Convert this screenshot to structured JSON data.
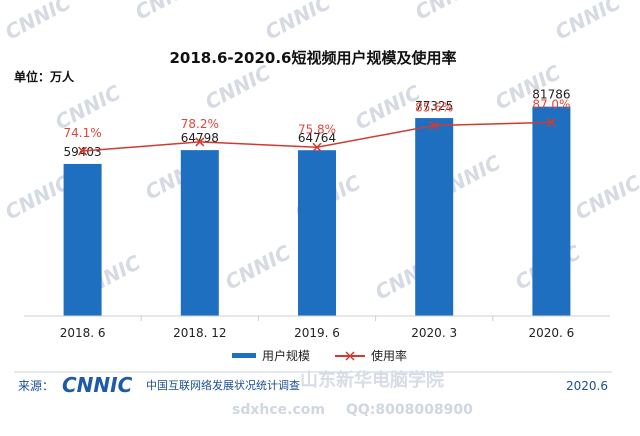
{
  "chart_data": {
    "type": "bar",
    "title": "2018.6-2020.6短视频用户规模及使用率",
    "unit_label": "单位：万人",
    "categories": [
      "2018. 6",
      "2018. 12",
      "2019. 6",
      "2020. 3",
      "2020. 6"
    ],
    "series": [
      {
        "name": "用户规模",
        "type": "bar",
        "color": "#1f6fc0",
        "values": [
          59403,
          64798,
          64764,
          77325,
          81786
        ],
        "labels": [
          "59403",
          "64798",
          "64764",
          "77325",
          "81786"
        ]
      },
      {
        "name": "使用率",
        "type": "line",
        "color": "#d23a30",
        "values": [
          74.1,
          78.2,
          75.8,
          85.6,
          87.0
        ],
        "labels": [
          "74.1%",
          "78.2%",
          "75.8%",
          "85.6%",
          "87.0%"
        ]
      }
    ],
    "bar_axis_range": [
      0,
      100000
    ],
    "rate_axis_range": [
      0,
      115
    ],
    "legend_position": "bottom-center",
    "grid": false
  },
  "footer": {
    "source_label": "来源：",
    "logo_text": "CNNIC",
    "org_name": "中国互联网络发展状况统计调查",
    "date": "2020.6"
  },
  "watermark": {
    "text": "CNNIC",
    "site_name": "山东新华电脑学院",
    "site_url": "sdxhce.com",
    "site_qq": "QQ:8008008900"
  }
}
